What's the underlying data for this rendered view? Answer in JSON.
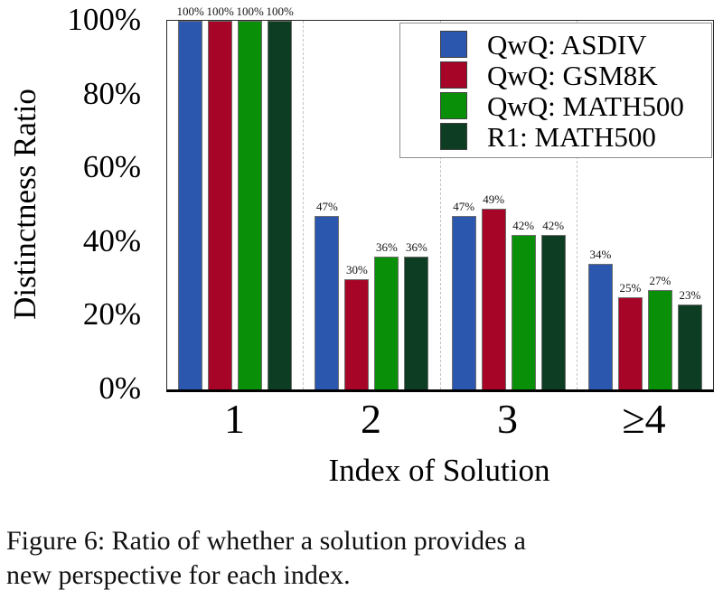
{
  "figure_caption": {
    "line1": "Figure 6: Ratio of whether a solution provides a",
    "line2": "new perspective for each index."
  },
  "chart_data": {
    "type": "bar",
    "title": "",
    "xlabel": "Index of Solution",
    "ylabel": "Distinctness Ratio",
    "categories": [
      "1",
      "2",
      "3",
      "≥4"
    ],
    "series": [
      {
        "name": "QwQ: ASDIV",
        "color": "#2b57ae",
        "values": [
          100,
          47,
          47,
          34
        ]
      },
      {
        "name": "QwQ: GSM8K",
        "color": "#a60527",
        "values": [
          100,
          30,
          49,
          25
        ]
      },
      {
        "name": "QwQ: MATH500",
        "color": "#0a9008",
        "values": [
          100,
          36,
          42,
          27
        ]
      },
      {
        "name": "R1: MATH500",
        "color": "#0d3d22",
        "values": [
          100,
          36,
          42,
          23
        ]
      }
    ],
    "y_ticks": [
      {
        "value": 0,
        "label": "0%"
      },
      {
        "value": 20,
        "label": "20%"
      },
      {
        "value": 40,
        "label": "40%"
      },
      {
        "value": 60,
        "label": "60%"
      },
      {
        "value": 80,
        "label": "80%"
      },
      {
        "value": 100,
        "label": "100%"
      }
    ],
    "ylim": [
      0,
      100
    ],
    "bar_label_suffix": "%",
    "legend_position": "upper right",
    "grid": "dashed vertical separators between category groups",
    "separator_color": "#c4c4c4"
  }
}
